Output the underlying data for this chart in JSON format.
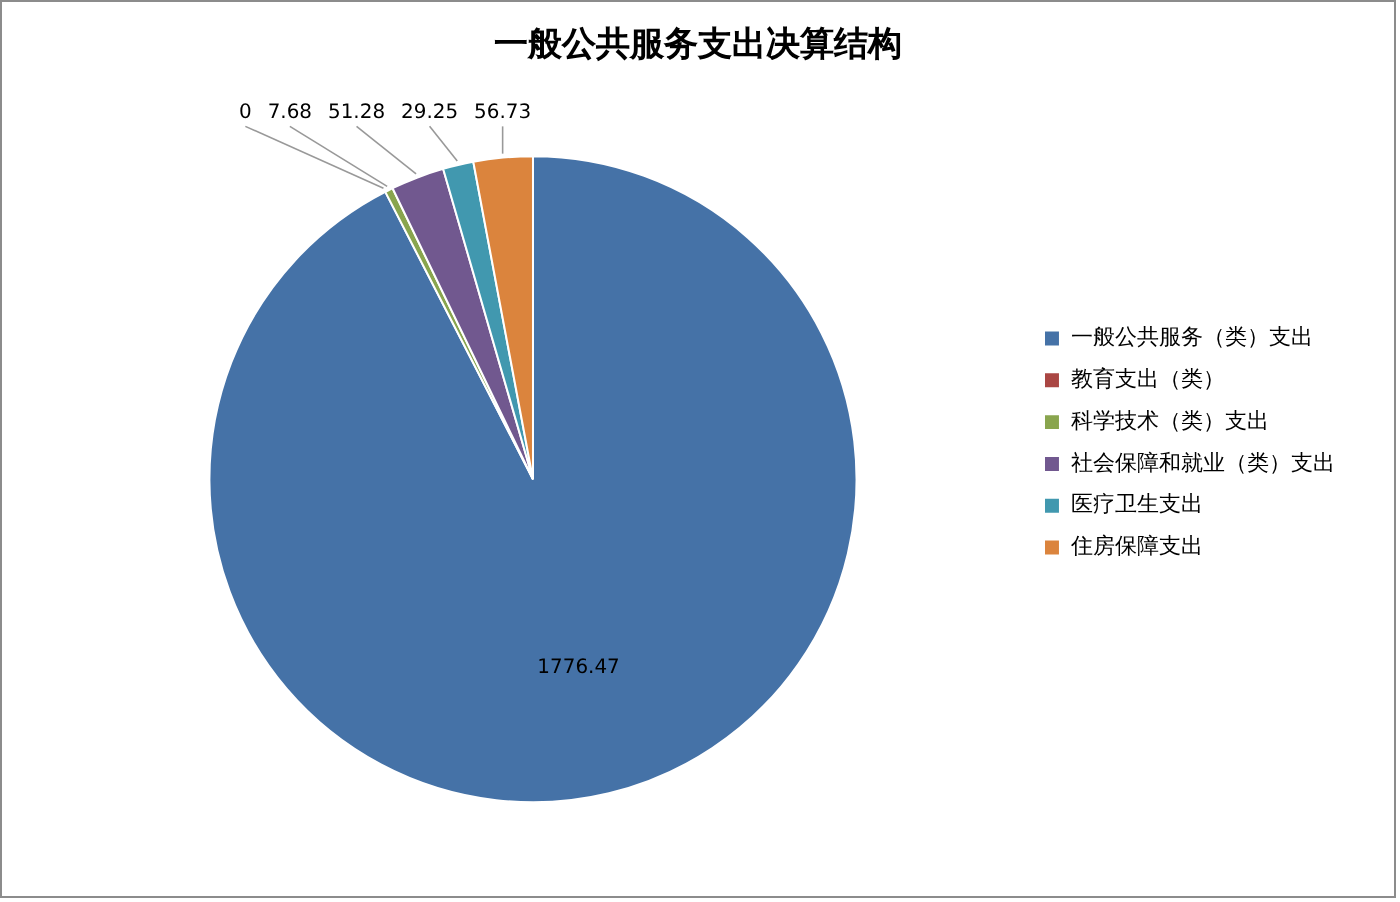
{
  "chart_data": {
    "type": "pie",
    "title": "一般公共服务支出决算结构",
    "categories": [
      "一般公共服务（类）支出",
      "教育支出（类）",
      "科学技术（类）支出",
      "社会保障和就业（类）支出",
      "医疗卫生支出",
      "住房保障支出"
    ],
    "values": [
      1776.47,
      0,
      7.68,
      51.28,
      29.25,
      56.73
    ],
    "value_labels": [
      "1776.47",
      "0",
      "7.68",
      "51.28",
      "29.25",
      "56.73"
    ],
    "colors": [
      "#4572a7",
      "#aa4643",
      "#89a54e",
      "#71588f",
      "#4198af",
      "#db843d"
    ],
    "legend": "right"
  }
}
